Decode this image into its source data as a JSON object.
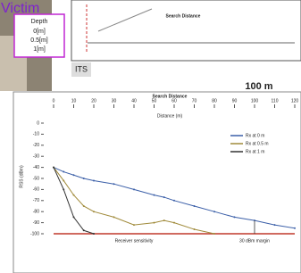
{
  "photo_label": "Victim",
  "depth": {
    "title": "Depth",
    "levels": [
      "0[m]",
      "0.5[m]",
      "1[m]"
    ]
  },
  "diagram": {
    "device": "ITS",
    "span_label": "Search Distance",
    "scale_label": "100 m"
  },
  "chart_data": {
    "type": "line",
    "title": "Search Distance",
    "x_label": "Distance (m)",
    "y_label": "RSS (dBm)",
    "x": [
      0,
      5,
      10,
      15,
      20,
      30,
      40,
      50,
      55,
      60,
      70,
      80,
      90,
      100,
      110,
      120
    ],
    "series": [
      {
        "name": "Rx at 0 m",
        "color": "#3b5fa8",
        "values": [
          -40,
          -44,
          -47,
          -50,
          -52,
          -55,
          -60,
          -65,
          -67,
          -70,
          -75,
          -80,
          -85,
          -88,
          -92,
          -95
        ]
      },
      {
        "name": "Rx at 0.5 m",
        "color": "#a08a3a",
        "values": [
          -40,
          -52,
          -65,
          -75,
          -80,
          -85,
          -92,
          -90,
          -88,
          -90,
          -96,
          -100,
          null,
          null,
          null,
          null
        ]
      },
      {
        "name": "Rx at 1 m",
        "color": "#333333",
        "values": [
          -40,
          -60,
          -85,
          -97,
          -100,
          null,
          null,
          null,
          null,
          null,
          null,
          null,
          null,
          null,
          null,
          null
        ]
      }
    ],
    "xlim": [
      0,
      120
    ],
    "ylim": [
      -100,
      0
    ],
    "xticks": [
      0,
      10,
      20,
      30,
      40,
      50,
      60,
      70,
      80,
      90,
      100,
      110,
      120
    ],
    "yticks": [
      0,
      -10,
      -20,
      -30,
      -40,
      -50,
      -60,
      -70,
      -80,
      -90,
      -100
    ],
    "sensitivity": {
      "value": -100,
      "label": "Receiver sensitivity",
      "color": "#c0392b"
    },
    "margin": {
      "x": 100,
      "label": "30 dBm margin"
    }
  }
}
